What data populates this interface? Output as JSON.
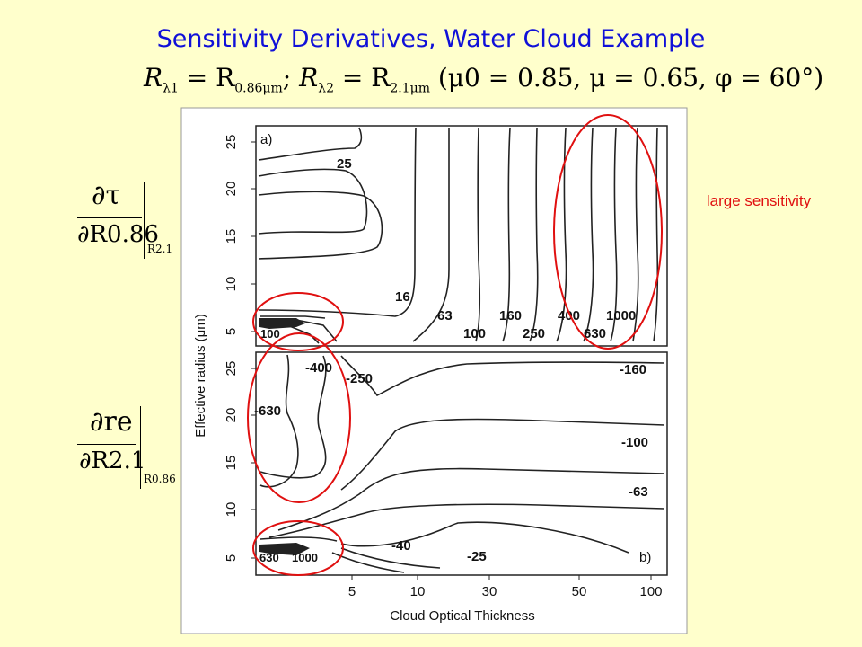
{
  "title": "Sensitivity Derivatives, Water Cloud Example",
  "subtitle": {
    "r1": "R",
    "r1_sub": "λ1",
    "eq1": " = R",
    "eq1_sub": "0.86μm",
    "sep": "; ",
    "r2": "R",
    "r2_sub": "λ2",
    "eq2": " = R",
    "eq2_sub": "2.1μm",
    "params": "  (μ0 = 0.85,  μ = 0.65,  φ = 60°)"
  },
  "derivative_top": {
    "num": "∂τ",
    "den": "∂R0.86",
    "eval": "R2.1"
  },
  "derivative_bottom": {
    "num": "∂re",
    "den": "∂R2.1",
    "eval": "R0.86"
  },
  "side_note": "large sensitivity",
  "colors": {
    "background": "#FFFFCC",
    "title": "#1010D8",
    "annotation": "#E01010",
    "figure_bg": "#FFFFFF"
  },
  "chart_data": [
    {
      "type": "contour",
      "panel_label": "a)",
      "xlabel": "Cloud Optical Thickness",
      "ylabel": "Effective radius (μm)",
      "x_ticks": [
        "5",
        "10",
        "30",
        "50",
        "100"
      ],
      "y_ticks": [
        "5",
        "10",
        "15",
        "20",
        "25"
      ],
      "contour_levels": [
        "25",
        "16",
        "63",
        "100",
        "160",
        "250",
        "400",
        "630",
        "1000",
        "100"
      ],
      "annotations": [
        "large sensitivity region at high optical thickness",
        "low optical thickness / small radius region"
      ]
    },
    {
      "type": "contour",
      "panel_label": "b)",
      "xlabel": "Cloud Optical Thickness",
      "ylabel": "Effective radius (μm)",
      "x_ticks": [
        "5",
        "10",
        "30",
        "50",
        "100"
      ],
      "y_ticks": [
        "5",
        "10",
        "15",
        "20",
        "25"
      ],
      "contour_levels": [
        "-400",
        "-250",
        "-630",
        "-160",
        "-100",
        "-63",
        "-40",
        "-25",
        "630",
        "1000"
      ]
    }
  ]
}
